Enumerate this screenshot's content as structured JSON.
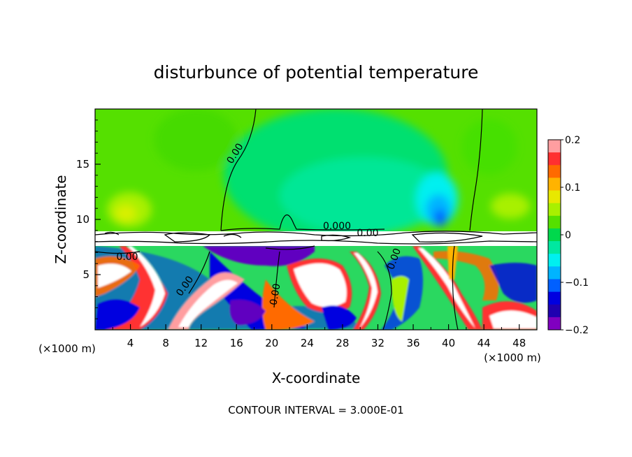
{
  "chart_data": {
    "type": "heatmap",
    "title": "disturbunce of potential temperature",
    "xlabel": "X-coordinate",
    "ylabel": "Z-coordinate",
    "x_unit": "(×1000 m)",
    "x_unit_right": "(×1000 m)",
    "xlim": [
      0,
      50
    ],
    "ylim": [
      0,
      20
    ],
    "x_ticks": [
      "4",
      "8",
      "12",
      "16",
      "20",
      "24",
      "28",
      "32",
      "36",
      "40",
      "44",
      "48"
    ],
    "y_ticks": [
      "5",
      "10",
      "15"
    ],
    "colorbar": {
      "range": [
        -0.2,
        0.2
      ],
      "tick_labels": [
        "0.2",
        "0.1",
        "0",
        "−0.1",
        "−0.2"
      ],
      "colors": [
        "#ff9ea0",
        "#ff3030",
        "#ff6a00",
        "#ffb300",
        "#e8e800",
        "#a8f000",
        "#55e000",
        "#00d84c",
        "#00e8a0",
        "#00f0f0",
        "#00b4ff",
        "#0060ff",
        "#0000e0",
        "#2000b0",
        "#8000c0"
      ]
    },
    "contour_labels": [
      "0.00",
      "0.000",
      "0.00",
      "0.00",
      "0.00",
      "0.00",
      "0.00"
    ],
    "footer": "CONTOUR INTERVAL = 3.000E-01"
  }
}
